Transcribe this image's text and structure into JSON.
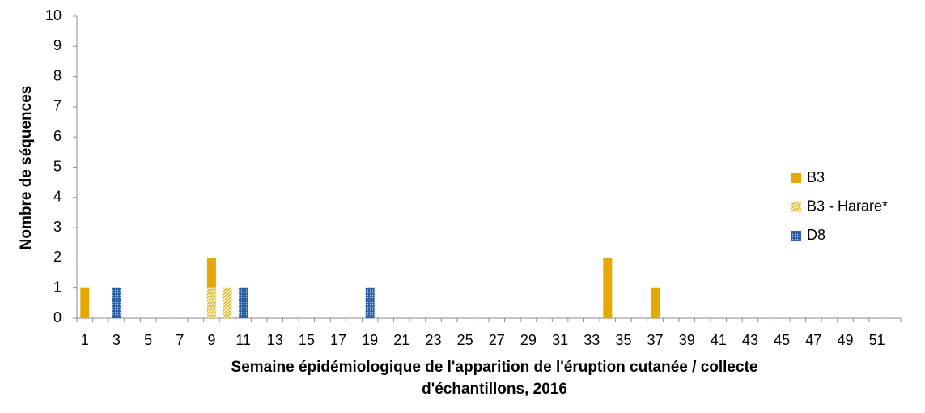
{
  "chart_data": {
    "type": "bar",
    "stacked": true,
    "y_label": "Nombre de séquences",
    "x_label": [
      "Semaine épidémiologique de l'apparition de l'éruption cutanée / collecte",
      "d'échantillons, 2016"
    ],
    "categories": [
      "1",
      null,
      "3",
      null,
      "5",
      null,
      "7",
      null,
      "9",
      null,
      "11",
      null,
      "13",
      null,
      "15",
      null,
      "17",
      null,
      "19",
      null,
      "21",
      null,
      "23",
      null,
      "25",
      null,
      "27",
      null,
      "29",
      null,
      "31",
      null,
      "33",
      null,
      "35",
      null,
      "37",
      null,
      "39",
      null,
      "41",
      null,
      "43",
      null,
      "45",
      null,
      "47",
      null,
      "49",
      null,
      "51",
      null
    ],
    "series": [
      {
        "name": "B3",
        "color": "#e6a800",
        "pattern": "solid",
        "values": [
          1,
          0,
          0,
          0,
          0,
          0,
          0,
          0,
          1,
          0,
          0,
          0,
          0,
          0,
          0,
          0,
          0,
          0,
          0,
          0,
          0,
          0,
          0,
          0,
          0,
          0,
          0,
          0,
          0,
          0,
          0,
          0,
          0,
          2,
          0,
          0,
          1,
          0,
          0,
          0,
          0,
          0,
          0,
          0,
          0,
          0,
          0,
          0,
          0,
          0,
          0,
          0
        ]
      },
      {
        "name": "B3 - Harare*",
        "color": "#e6b800",
        "pattern": "hatch",
        "values": [
          0,
          0,
          0,
          0,
          0,
          0,
          0,
          0,
          1,
          1,
          0,
          0,
          0,
          0,
          0,
          0,
          0,
          0,
          0,
          0,
          0,
          0,
          0,
          0,
          0,
          0,
          0,
          0,
          0,
          0,
          0,
          0,
          0,
          0,
          0,
          0,
          0,
          0,
          0,
          0,
          0,
          0,
          0,
          0,
          0,
          0,
          0,
          0,
          0,
          0,
          0,
          0
        ]
      },
      {
        "name": "D8",
        "color": "#2e62a8",
        "pattern": "dots",
        "values": [
          0,
          0,
          1,
          0,
          0,
          0,
          0,
          0,
          0,
          0,
          1,
          0,
          0,
          0,
          0,
          0,
          0,
          0,
          1,
          0,
          0,
          0,
          0,
          0,
          0,
          0,
          0,
          0,
          0,
          0,
          0,
          0,
          0,
          0,
          0,
          0,
          0,
          0,
          0,
          0,
          0,
          0,
          0,
          0,
          0,
          0,
          0,
          0,
          0,
          0,
          0,
          0
        ]
      }
    ],
    "ylim": [
      0,
      10
    ],
    "yticks": [
      0,
      1,
      2,
      3,
      4,
      5,
      6,
      7,
      8,
      9,
      10
    ],
    "grid": false,
    "legend": "right"
  }
}
